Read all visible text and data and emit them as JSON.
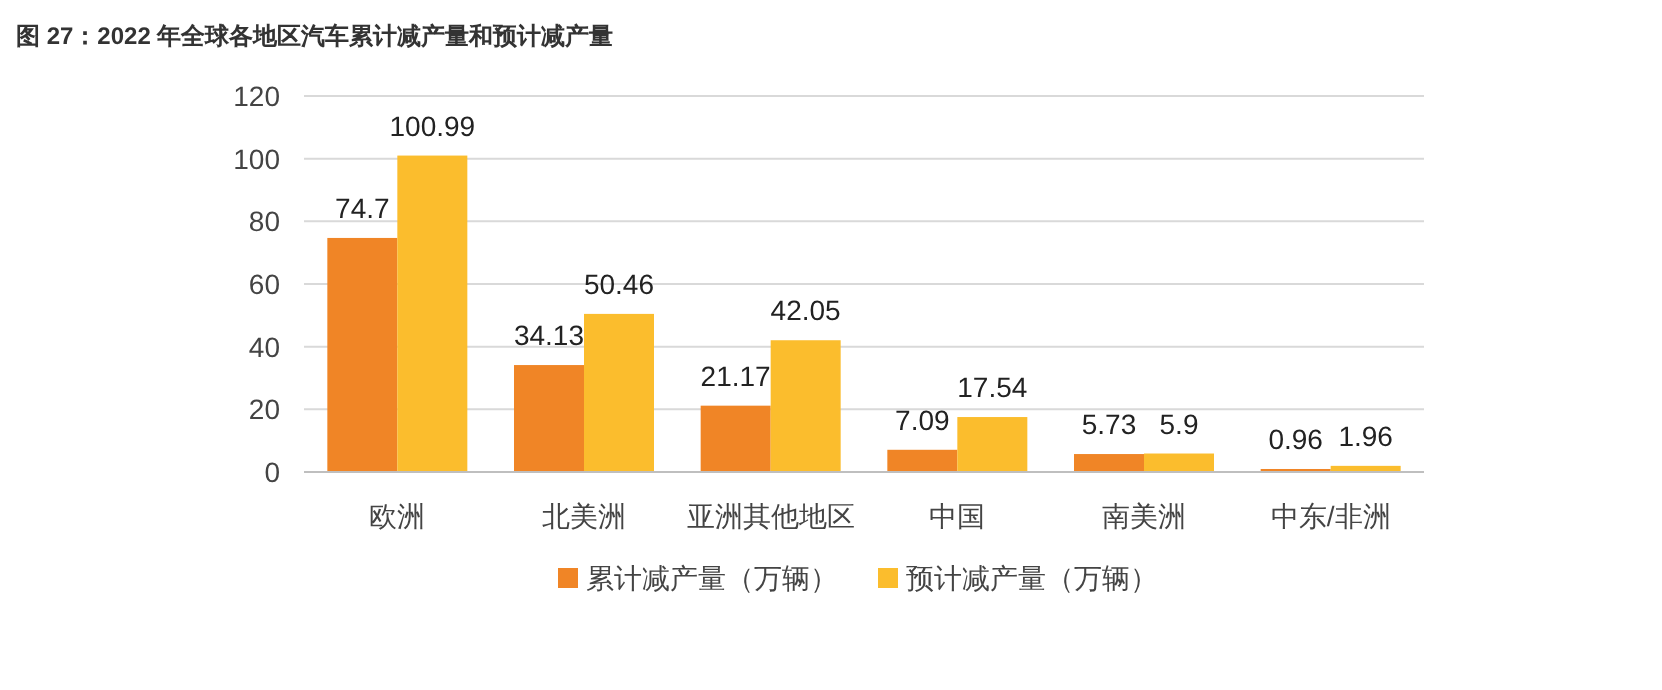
{
  "chart_data": {
    "type": "bar",
    "title": "图 27：2022 年全球各地区汽车累计减产量和预计减产量",
    "categories": [
      "欧洲",
      "北美洲",
      "亚洲其他地区",
      "中国",
      "南美洲",
      "中东/非洲"
    ],
    "series": [
      {
        "name": "累计减产量（万辆）",
        "color": "#f08526",
        "values": [
          74.7,
          34.13,
          21.17,
          7.09,
          5.73,
          0.96
        ]
      },
      {
        "name": "预计减产量（万辆）",
        "color": "#fbbd2d",
        "values": [
          100.99,
          50.46,
          42.05,
          17.54,
          5.9,
          1.96
        ]
      }
    ],
    "ylim": [
      0,
      120
    ],
    "yticks": [
      0,
      20,
      40,
      60,
      80,
      100,
      120
    ],
    "grid": "y",
    "legend": "bottom",
    "data_labels": true
  }
}
